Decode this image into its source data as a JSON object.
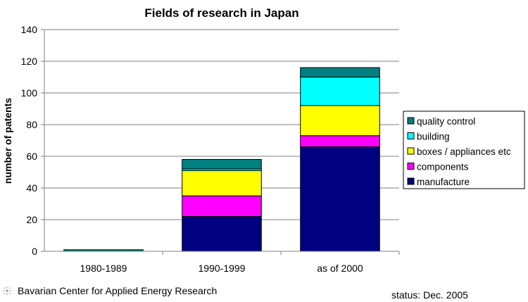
{
  "chart_data": {
    "type": "bar",
    "stacked": true,
    "title": "Fields of research in Japan",
    "ylabel": "number of patents",
    "xlabel": "",
    "ylim": [
      0,
      140
    ],
    "yticks": [
      0,
      20,
      40,
      60,
      80,
      100,
      120,
      140
    ],
    "grid": true,
    "legend_position": "right",
    "categories": [
      "1980-1989",
      "1990-1999",
      "as of 2000"
    ],
    "series": [
      {
        "name": "manufacture",
        "color": "#000080",
        "values": [
          0,
          22,
          66
        ]
      },
      {
        "name": "components",
        "color": "#ff00ff",
        "values": [
          0,
          13,
          7
        ]
      },
      {
        "name": "boxes / appliances etc",
        "color": "#ffff00",
        "values": [
          0,
          16,
          19
        ]
      },
      {
        "name": "building",
        "color": "#00ffff",
        "values": [
          0,
          1,
          18
        ]
      },
      {
        "name": "quality control",
        "color": "#008080",
        "values": [
          1,
          6,
          6
        ]
      }
    ]
  },
  "footer": {
    "source": "Bavarian Center for Applied Energy Research",
    "status": "status: Dec. 2005"
  }
}
